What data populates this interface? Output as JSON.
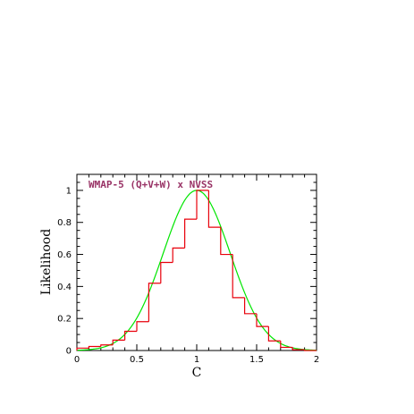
{
  "chart_data": {
    "type": "line",
    "title": "WMAP-5 (Q+V+W) x NVSS",
    "xlabel": "C",
    "ylabel": "Likelihood",
    "xlim": [
      0,
      2
    ],
    "ylim": [
      0,
      1.1
    ],
    "grid": false,
    "x_ticks": [
      0,
      0.5,
      1,
      1.5,
      2
    ],
    "x_tick_labels": [
      "0",
      "0.5",
      "1",
      "1.5",
      "2"
    ],
    "y_ticks": [
      0,
      0.2,
      0.4,
      0.6,
      0.8,
      1
    ],
    "y_tick_labels": [
      "0",
      "0.2",
      "0.4",
      "0.6",
      "0.8",
      "1"
    ],
    "title_color": "#993366",
    "series": [
      {
        "kind": "histogram",
        "color": "#e8000b",
        "bin_edges": [
          0,
          0.1,
          0.2,
          0.3,
          0.4,
          0.5,
          0.6,
          0.7,
          0.8,
          0.9,
          1.0,
          1.1,
          1.2,
          1.3,
          1.4,
          1.5,
          1.6,
          1.7,
          1.8,
          1.9,
          2.0
        ],
        "values": [
          0.015,
          0.025,
          0.035,
          0.065,
          0.12,
          0.18,
          0.42,
          0.55,
          0.64,
          0.82,
          1.0,
          0.77,
          0.6,
          0.33,
          0.23,
          0.15,
          0.06,
          0.02,
          0.005,
          0.0
        ]
      },
      {
        "kind": "gaussian",
        "color": "#00e600",
        "mean": 1.0,
        "sigma": 0.28,
        "amplitude": 1.0
      }
    ]
  }
}
